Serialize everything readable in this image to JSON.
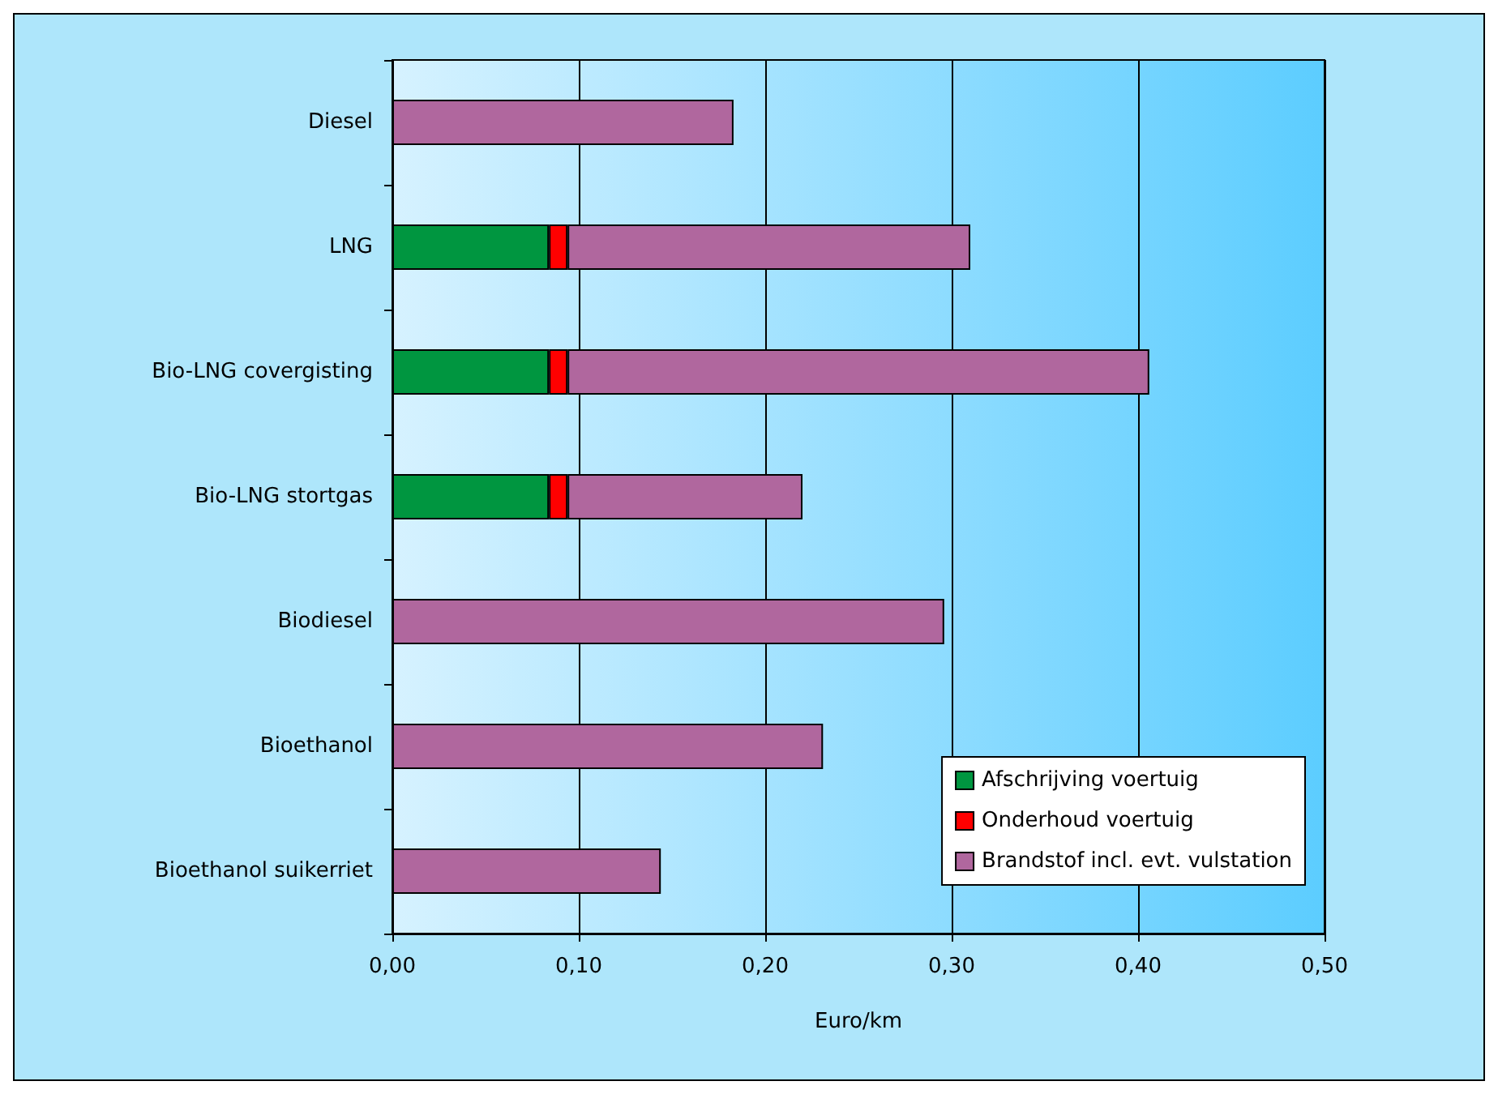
{
  "chart_data": {
    "type": "bar",
    "orientation": "horizontal",
    "stacked": true,
    "xlabel": "Euro/km",
    "categories": [
      "Diesel",
      "LNG",
      "Bio-LNG covergisting",
      "Bio-LNG stortgas",
      "Biodiesel",
      "Bioethanol",
      "Bioethanol suikerriet"
    ],
    "series": [
      {
        "name": "Afschrijving voertuig",
        "color": "#009640",
        "values": [
          null,
          0.084,
          0.084,
          0.084,
          null,
          null,
          null
        ]
      },
      {
        "name": "Onderhoud voertuig",
        "color": "#ff0000",
        "values": [
          null,
          0.01,
          0.01,
          0.01,
          null,
          null,
          null
        ]
      },
      {
        "name": "Brandstof incl. evt. vulstation",
        "color": "#b0679e",
        "values": [
          0.183,
          0.216,
          0.312,
          0.126,
          0.296,
          0.231,
          0.144
        ]
      }
    ],
    "xlim": [
      0,
      0.5
    ],
    "xticks": [
      {
        "value": 0,
        "label": "0,00"
      },
      {
        "value": 0.1,
        "label": "0,10"
      },
      {
        "value": 0.2,
        "label": "0,20"
      },
      {
        "value": 0.3,
        "label": "0,30"
      },
      {
        "value": 0.4,
        "label": "0,40"
      },
      {
        "value": 0.5,
        "label": "0,50"
      }
    ],
    "grid": "x",
    "legend": "bottom right"
  }
}
